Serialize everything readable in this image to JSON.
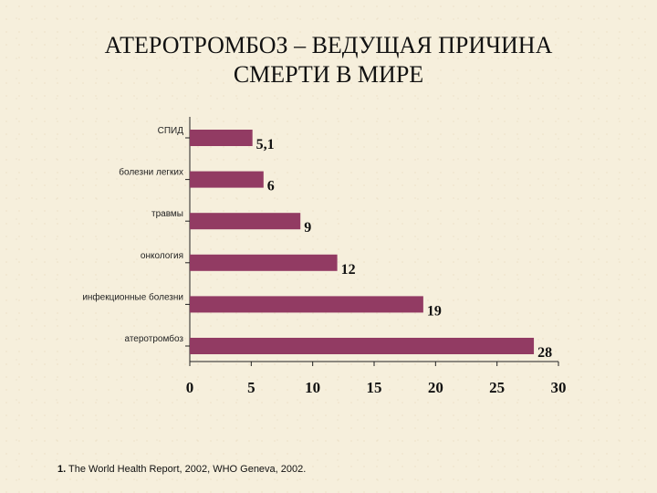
{
  "slide": {
    "title_line1": "АТЕРОТРОМБОЗ – ВЕДУЩАЯ ПРИЧИНА",
    "title_line2": "СМЕРТИ В МИРЕ",
    "footnote_number": "1.",
    "footnote_text": " The World Health Report, 2002, WHO Geneva, 2002."
  },
  "chart_data": {
    "type": "bar",
    "orientation": "horizontal",
    "categories": [
      "СПИД",
      "болезни легких",
      "травмы",
      "онкология",
      "инфекционные болезни",
      "атеротромбоз"
    ],
    "values": [
      5.1,
      6,
      9,
      12,
      19,
      28
    ],
    "data_labels": [
      "5,1",
      "6",
      "9",
      "12",
      "19",
      "28"
    ],
    "xlim": [
      0,
      30
    ],
    "xticks": [
      0,
      5,
      10,
      15,
      20,
      25,
      30
    ],
    "grid": false,
    "bar_color": "#923b63"
  }
}
